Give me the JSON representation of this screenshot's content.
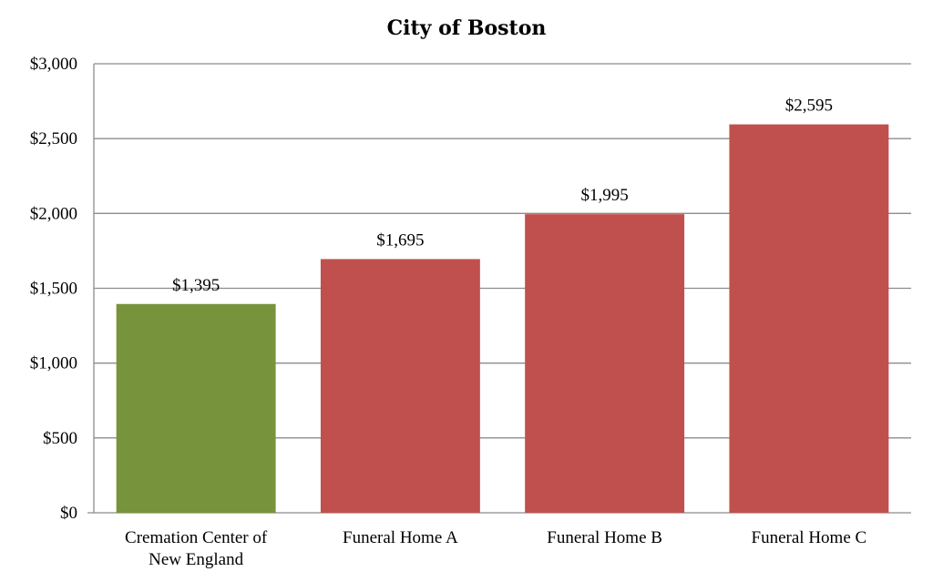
{
  "chart_data": {
    "type": "bar",
    "title": "City of Boston",
    "xlabel": "",
    "ylabel": "",
    "categories": [
      [
        "Cremation Center of",
        "New England"
      ],
      [
        "Funeral Home A"
      ],
      [
        "Funeral Home B"
      ],
      [
        "Funeral Home C"
      ]
    ],
    "values": [
      1395,
      1695,
      1995,
      2595
    ],
    "data_labels": [
      "$1,395",
      "$1,695",
      "$1,995",
      "$2,595"
    ],
    "colors": [
      "#77933c",
      "#c0504d",
      "#c0504d",
      "#c0504d"
    ],
    "ylim": [
      0,
      3000
    ],
    "yticks": [
      0,
      500,
      1000,
      1500,
      2000,
      2500,
      3000
    ],
    "ytick_labels": [
      "$0",
      "$500",
      "$1,000",
      "$1,500",
      "$2,000",
      "$2,500",
      "$3,000"
    ],
    "grid": true,
    "legend": "none"
  }
}
